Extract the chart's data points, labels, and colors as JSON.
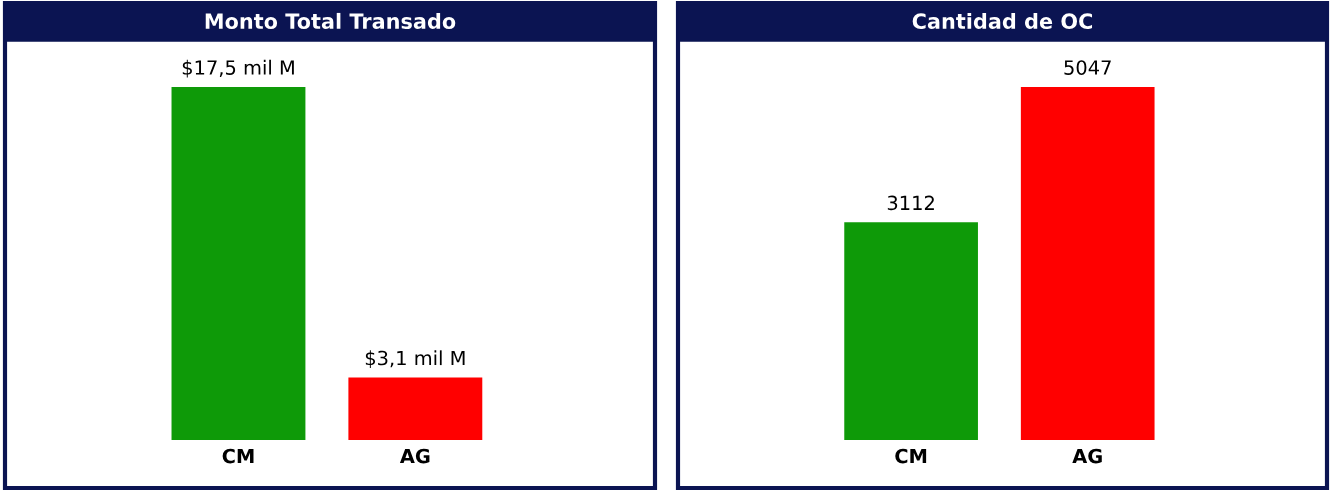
{
  "chart_data": [
    {
      "type": "bar",
      "title": "Monto Total Transado",
      "categories": [
        "CM",
        "AG"
      ],
      "values": [
        17.5,
        3.1
      ],
      "colors": [
        "#0e9a08",
        "#ff0000"
      ],
      "value_labels": [
        "$17,5 mil M",
        "$3,1 mil M"
      ]
    },
    {
      "type": "bar",
      "title": "Cantidad de OC",
      "categories": [
        "CM",
        "AG"
      ],
      "values": [
        3112,
        5047
      ],
      "colors": [
        "#0e9a08",
        "#ff0000"
      ],
      "data_labels": true
    }
  ]
}
